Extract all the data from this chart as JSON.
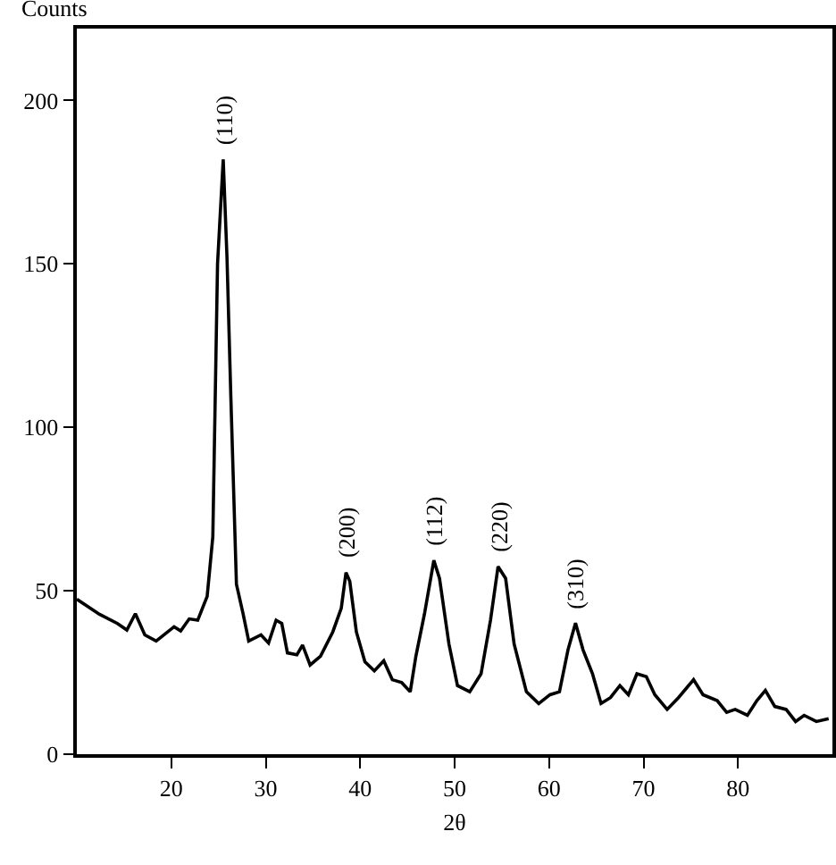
{
  "chart_data": {
    "type": "line",
    "xlabel": "2θ",
    "ylabel": "Counts",
    "xlim": [
      10,
      90
    ],
    "ylim": [
      0,
      222
    ],
    "xticks": [
      20,
      30,
      40,
      50,
      60,
      70,
      80
    ],
    "yticks": [
      0,
      50,
      100,
      150,
      200
    ],
    "grid": false,
    "marker": "none",
    "line_style": "solid",
    "x": [
      10,
      12.4,
      14.3,
      15.3,
      16.2,
      17.2,
      18.4,
      20.3,
      21,
      21.9,
      22.8,
      23.8,
      24.4,
      24.9,
      25.5,
      25.9,
      26.3,
      26.9,
      27.6,
      28.2,
      29.5,
      30.3,
      31.1,
      31.7,
      32.3,
      33.3,
      33.9,
      34.7,
      35.8,
      37.1,
      38,
      38.5,
      38.9,
      39.6,
      40.5,
      41.5,
      42.5,
      43.4,
      44.4,
      45.3,
      45.9,
      46.8,
      47.8,
      48.4,
      49.4,
      50.3,
      51.6,
      52.8,
      53.8,
      54.6,
      55.4,
      56.3,
      57.6,
      58.9,
      60.1,
      61.1,
      62,
      62.8,
      63.6,
      64.6,
      65.5,
      66.5,
      67.5,
      68.4,
      69.3,
      70.3,
      71.2,
      72.5,
      73.7,
      75.3,
      76.3,
      77.8,
      78.8,
      79.7,
      81,
      82,
      82.9,
      83.9,
      85.1,
      86.1,
      87,
      88.3,
      89.6
    ],
    "series": [
      {
        "color": "#000000",
        "values": [
          47.4,
          42.8,
          40,
          38,
          43,
          36.5,
          34.6,
          39,
          37.7,
          41.4,
          41,
          48.3,
          66.5,
          150,
          182,
          152,
          110,
          52,
          43,
          34.6,
          36.5,
          34,
          41,
          40,
          31,
          30.4,
          33.4,
          27.3,
          30,
          37.4,
          44.7,
          55.6,
          52.9,
          37.4,
          28.3,
          25.5,
          28.6,
          22.8,
          21.9,
          19.1,
          30,
          42.8,
          59.3,
          53.8,
          33.7,
          21,
          19.1,
          24.6,
          41,
          57.4,
          53.8,
          33.7,
          19.1,
          15.5,
          18.2,
          19.1,
          31.9,
          40.1,
          31.9,
          24.6,
          15.5,
          17.3,
          21,
          18.2,
          24.6,
          23.7,
          18.2,
          13.7,
          17.3,
          22.8,
          18.2,
          16.4,
          12.8,
          13.7,
          11.9,
          16.4,
          19.5,
          14.6,
          13.7,
          10,
          11.9,
          10,
          10.9
        ]
      }
    ],
    "annotations": [
      {
        "text": "(110)",
        "x": 25.5,
        "y": 182
      },
      {
        "text": "(200)",
        "x": 38.5,
        "y": 55.6
      },
      {
        "text": "(112)",
        "x": 47.8,
        "y": 59.3
      },
      {
        "text": "(220)",
        "x": 54.6,
        "y": 57.4
      },
      {
        "text": "(310)",
        "x": 62.8,
        "y": 40.1
      }
    ]
  }
}
